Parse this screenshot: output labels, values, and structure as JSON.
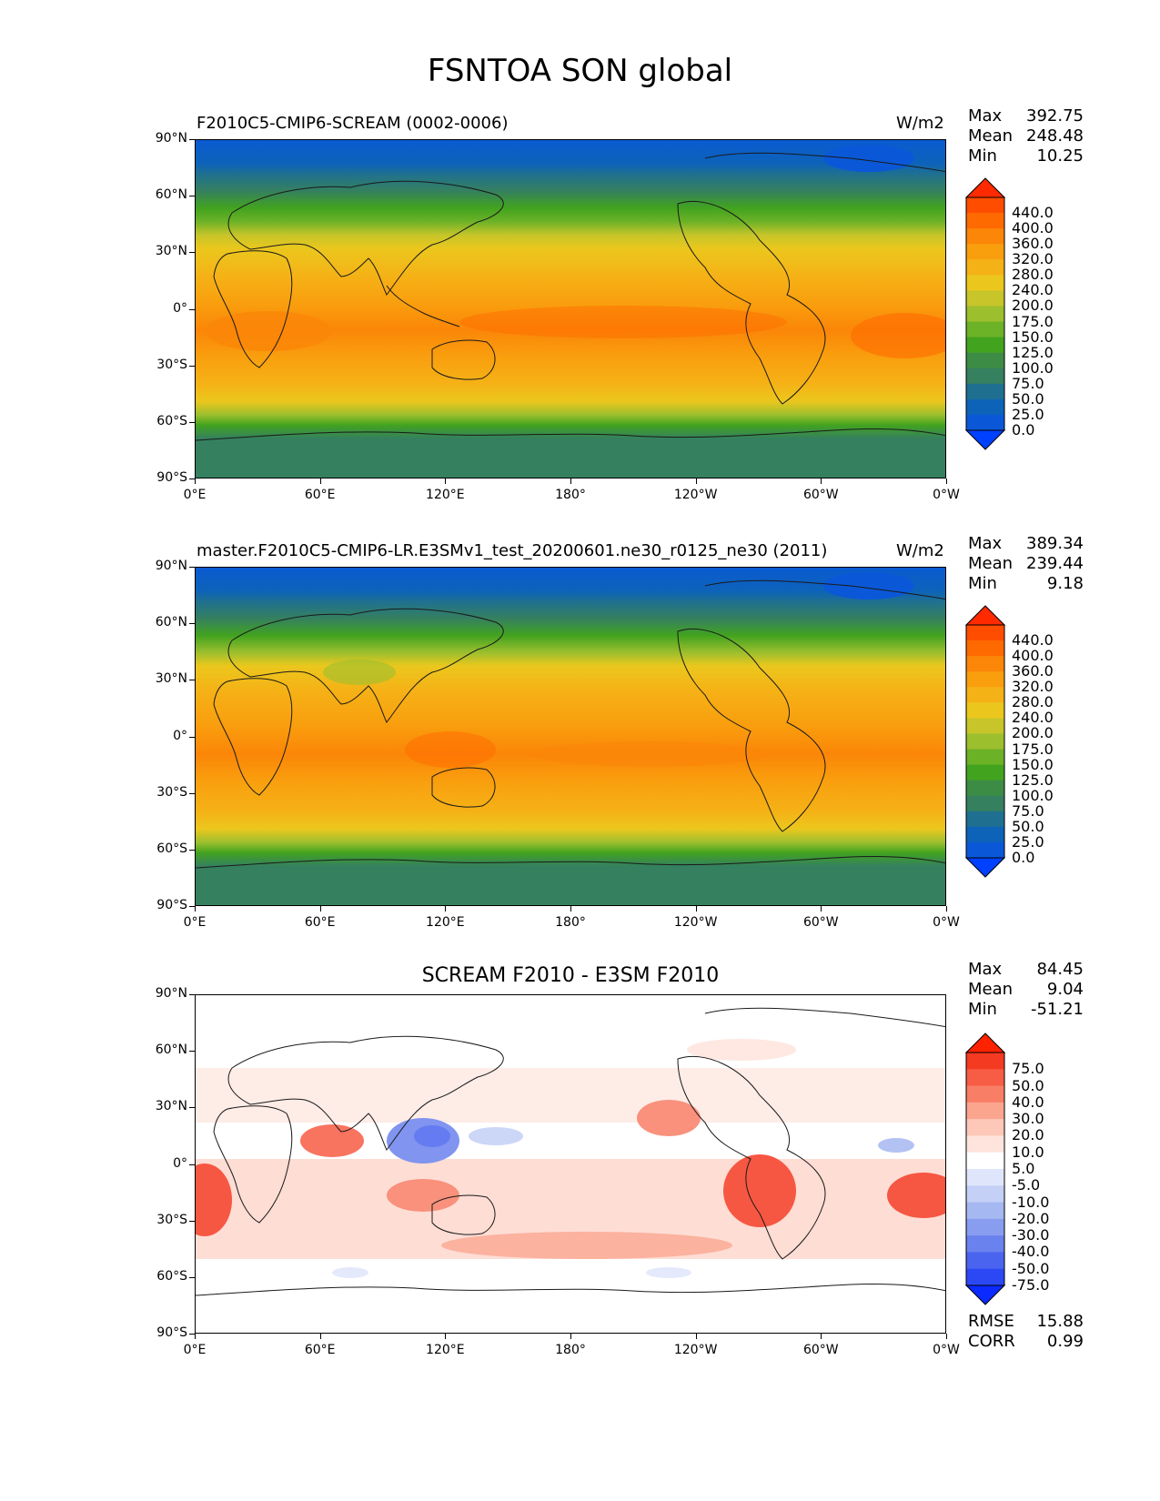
{
  "figure": {
    "title": "FSNTOA SON global"
  },
  "axes": {
    "lat_labels": [
      "90°N",
      "60°N",
      "30°N",
      "0°",
      "30°S",
      "60°S",
      "90°S"
    ],
    "lon_labels": [
      "0°E",
      "60°E",
      "120°E",
      "180°",
      "120°W",
      "60°W",
      "0°W"
    ]
  },
  "panels": [
    {
      "title": "F2010C5-CMIP6-SCREAM (0002-0006)",
      "units": "W/m2",
      "stats": {
        "max_label": "Max",
        "max": "392.75",
        "mean_label": "Mean",
        "mean": "248.48",
        "min_label": "Min",
        "min": "10.25"
      },
      "colorbar": {
        "labels": [
          "440.0",
          "400.0",
          "360.0",
          "320.0",
          "280.0",
          "240.0",
          "200.0",
          "175.0",
          "150.0",
          "125.0",
          "100.0",
          "75.0",
          "50.0",
          "25.0",
          "0.0"
        ],
        "colors": [
          "#ff2a00",
          "#ff4d00",
          "#ff6a00",
          "#fb8608",
          "#f99f0e",
          "#f5b216",
          "#ebc71d",
          "#c7c52a",
          "#9cbf2e",
          "#6cb227",
          "#42a31f",
          "#3c8c46",
          "#35805f",
          "#1f7090",
          "#0d63b8",
          "#0a58d8",
          "#0040ff"
        ]
      }
    },
    {
      "title": "master.F2010C5-CMIP6-LR.E3SMv1_test_20200601.ne30_r0125_ne30 (2011)",
      "units": "W/m2",
      "stats": {
        "max_label": "Max",
        "max": "389.34",
        "mean_label": "Mean",
        "mean": "239.44",
        "min_label": "Min",
        "min": "9.18"
      },
      "colorbar": {
        "labels": [
          "440.0",
          "400.0",
          "360.0",
          "320.0",
          "280.0",
          "240.0",
          "200.0",
          "175.0",
          "150.0",
          "125.0",
          "100.0",
          "75.0",
          "50.0",
          "25.0",
          "0.0"
        ],
        "colors": [
          "#ff2a00",
          "#ff4d00",
          "#ff6a00",
          "#fb8608",
          "#f99f0e",
          "#f5b216",
          "#ebc71d",
          "#c7c52a",
          "#9cbf2e",
          "#6cb227",
          "#42a31f",
          "#3c8c46",
          "#35805f",
          "#1f7090",
          "#0d63b8",
          "#0a58d8",
          "#0040ff"
        ]
      }
    },
    {
      "title": "SCREAM F2010 - E3SM F2010",
      "units": "",
      "stats": {
        "max_label": "Max",
        "max": "84.45",
        "mean_label": "Mean",
        "mean": "9.04",
        "min_label": "Min",
        "min": "-51.21"
      },
      "colorbar": {
        "labels": [
          "75.0",
          "50.0",
          "40.0",
          "30.0",
          "20.0",
          "10.0",
          "5.0",
          "-5.0",
          "-10.0",
          "-20.0",
          "-30.0",
          "-40.0",
          "-50.0",
          "-75.0"
        ],
        "colors": [
          "#ff2200",
          "#f53a22",
          "#f75c44",
          "#f97e66",
          "#fba58f",
          "#fdc8b8",
          "#fee4dc",
          "#ffffff",
          "#dfe6fb",
          "#c4d0f6",
          "#a6b8f1",
          "#889df0",
          "#6a82ee",
          "#4b64f0",
          "#2c48f5",
          "#0a2aff"
        ]
      },
      "bottom": {
        "rmse_label": "RMSE",
        "rmse": "15.88",
        "corr_label": "CORR",
        "corr": "0.99"
      }
    }
  ]
}
